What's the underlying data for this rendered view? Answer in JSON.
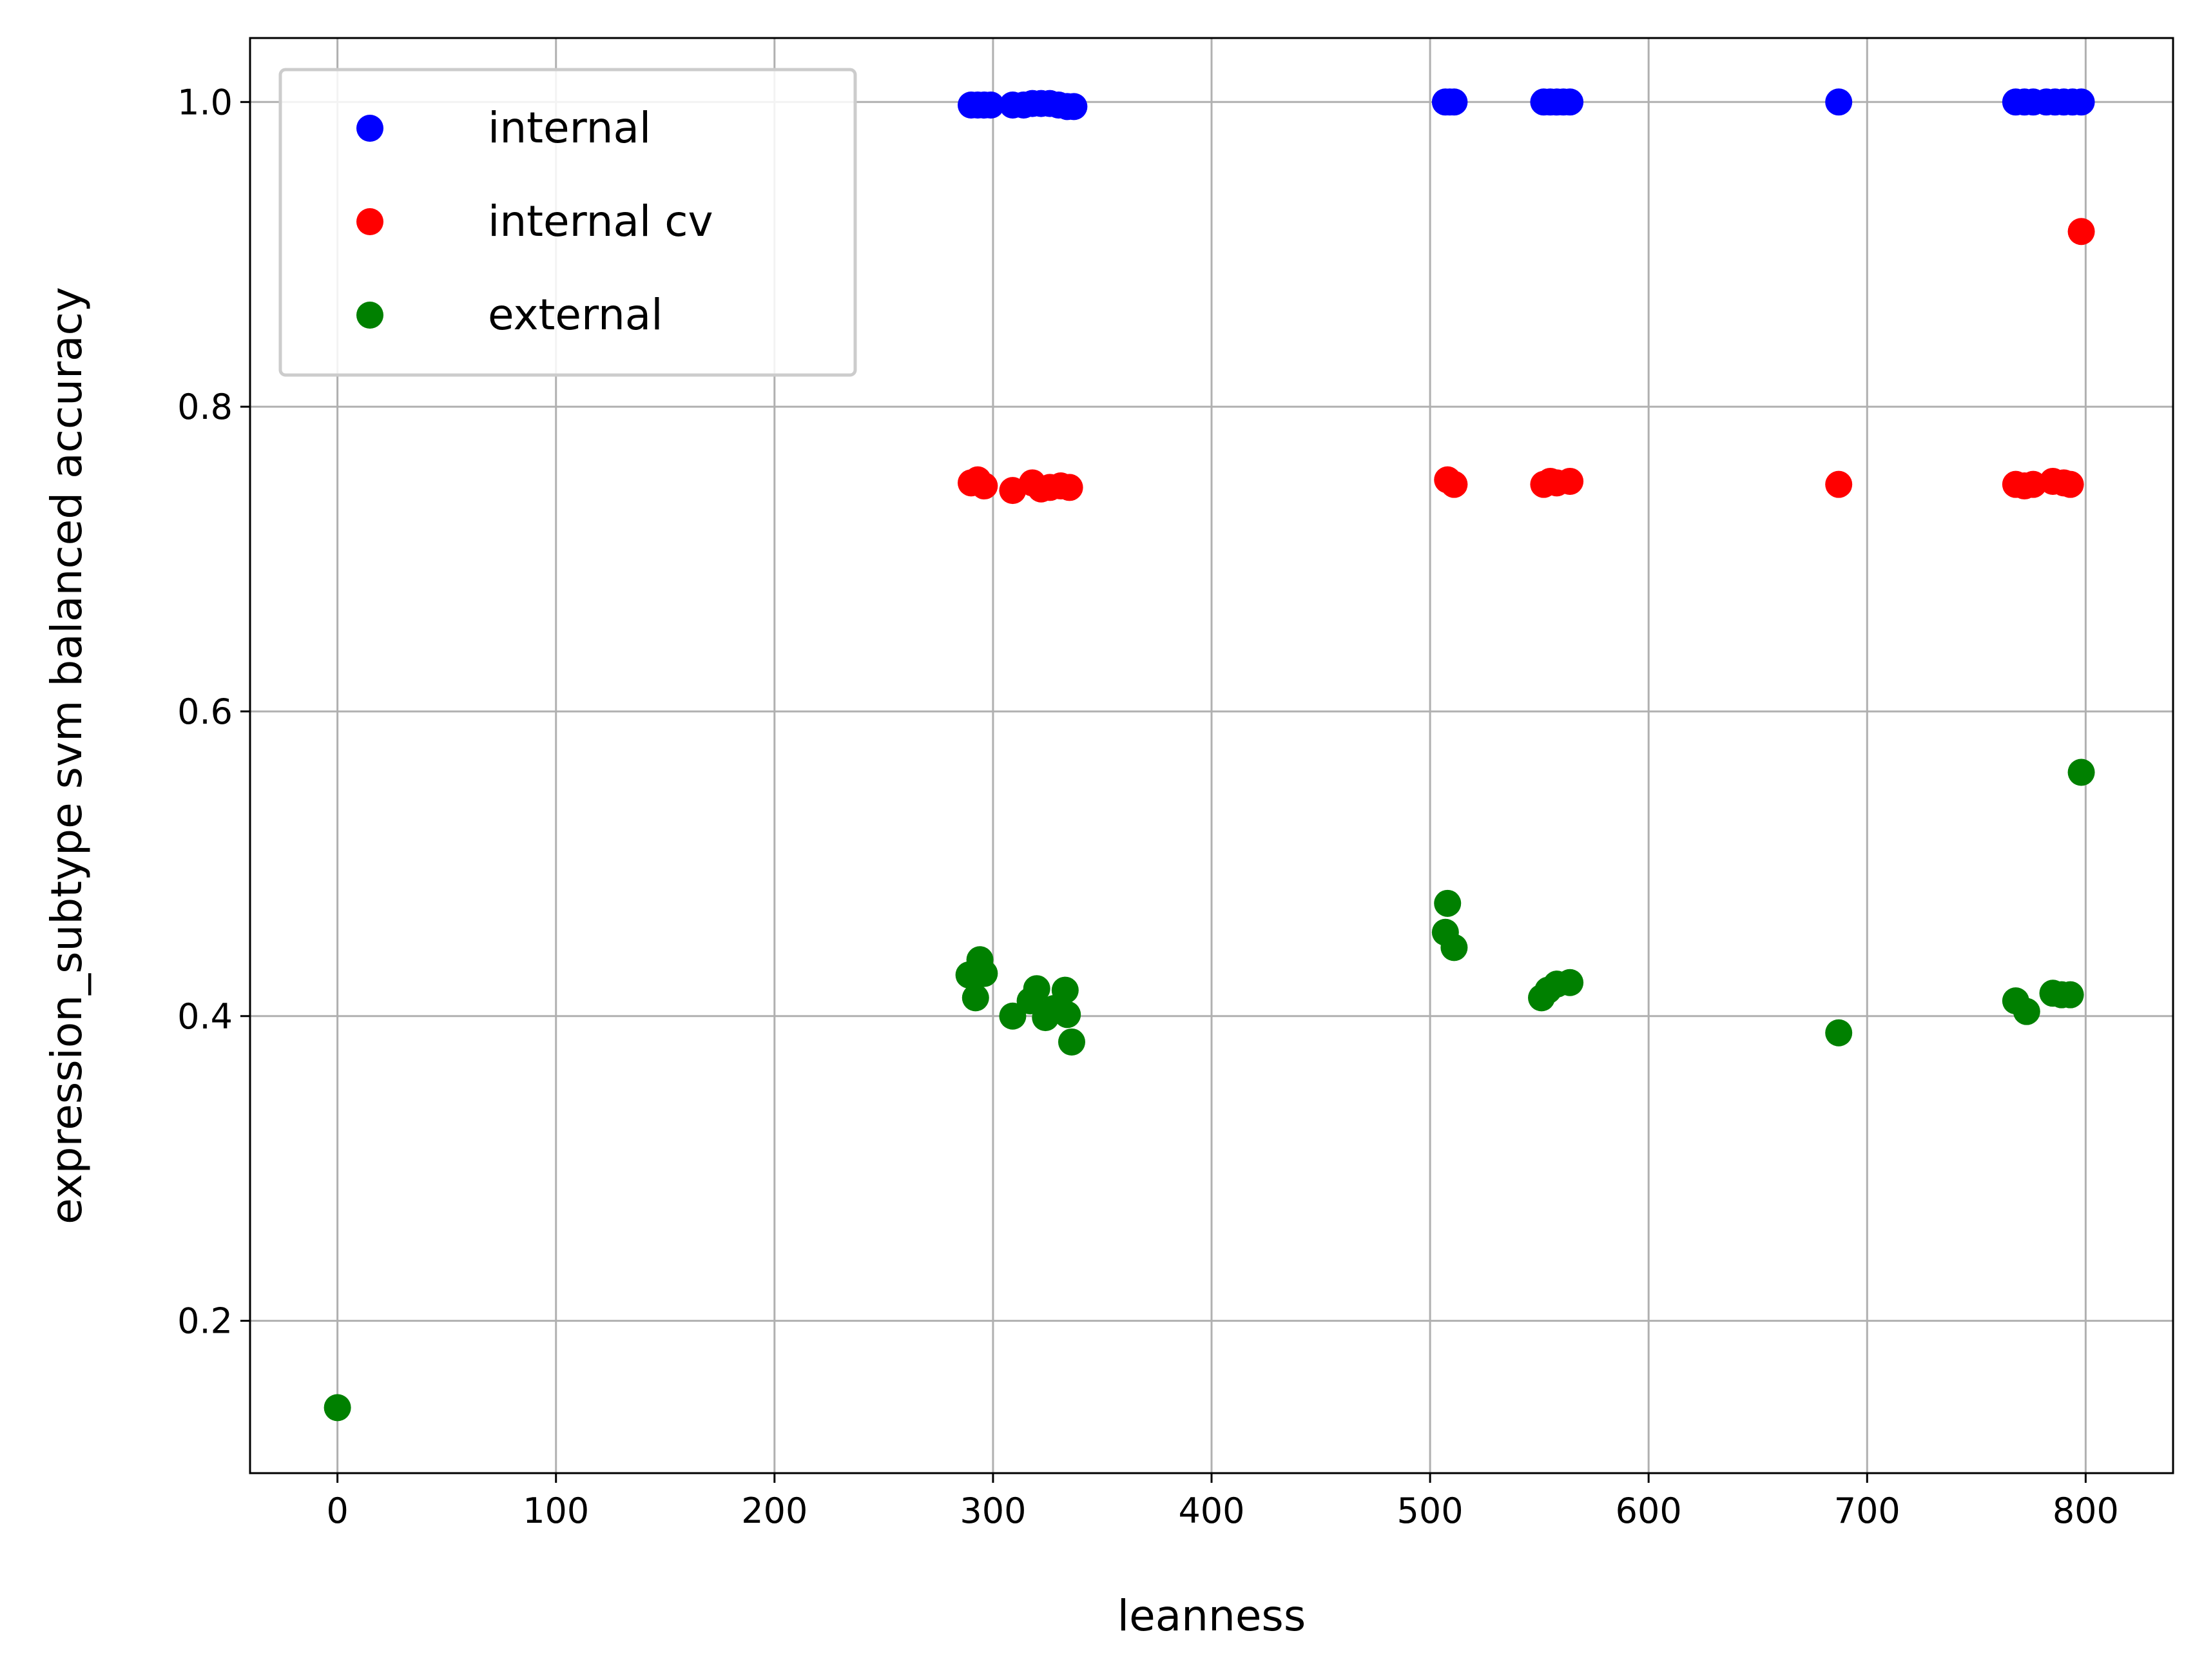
{
  "chart_data": {
    "type": "scatter",
    "xlabel": "leanness",
    "ylabel": "expression_subtype svm balanced accuracy",
    "xlim": [
      -40,
      840
    ],
    "ylim": [
      0.1,
      1.042
    ],
    "xticks": [
      0,
      100,
      200,
      300,
      400,
      500,
      600,
      700,
      800
    ],
    "yticks": [
      0.2,
      0.4,
      0.6,
      0.8,
      1.0
    ],
    "xtick_labels": [
      "0",
      "100",
      "200",
      "300",
      "400",
      "500",
      "600",
      "700",
      "800"
    ],
    "ytick_labels": [
      "0.2",
      "0.4",
      "0.6",
      "0.8",
      "1.0"
    ],
    "grid": true,
    "legend_position": "top-left",
    "series": [
      {
        "name": "internal",
        "color": "#0000ff",
        "points": [
          [
            290,
            0.998
          ],
          [
            293,
            0.998
          ],
          [
            296,
            0.998
          ],
          [
            299,
            0.998
          ],
          [
            309,
            0.998
          ],
          [
            314,
            0.998
          ],
          [
            318,
            0.999
          ],
          [
            322,
            0.999
          ],
          [
            326,
            0.999
          ],
          [
            330,
            0.998
          ],
          [
            334,
            0.997
          ],
          [
            337,
            0.997
          ],
          [
            507,
            1.0
          ],
          [
            509,
            1.0
          ],
          [
            511,
            1.0
          ],
          [
            552,
            1.0
          ],
          [
            555,
            1.0
          ],
          [
            558,
            1.0
          ],
          [
            561,
            1.0
          ],
          [
            564,
            1.0
          ],
          [
            687,
            1.0
          ],
          [
            768,
            1.0
          ],
          [
            772,
            1.0
          ],
          [
            776,
            1.0
          ],
          [
            782,
            1.0
          ],
          [
            786,
            1.0
          ],
          [
            790,
            1.0
          ],
          [
            794,
            1.0
          ],
          [
            798,
            1.0
          ]
        ]
      },
      {
        "name": "internal cv",
        "color": "#ff0000",
        "points": [
          [
            290,
            0.75
          ],
          [
            293,
            0.752
          ],
          [
            296,
            0.748
          ],
          [
            309,
            0.745
          ],
          [
            318,
            0.75
          ],
          [
            322,
            0.746
          ],
          [
            326,
            0.747
          ],
          [
            331,
            0.748
          ],
          [
            335,
            0.747
          ],
          [
            508,
            0.752
          ],
          [
            511,
            0.749
          ],
          [
            552,
            0.749
          ],
          [
            555,
            0.751
          ],
          [
            558,
            0.75
          ],
          [
            564,
            0.751
          ],
          [
            687,
            0.749
          ],
          [
            768,
            0.749
          ],
          [
            772,
            0.748
          ],
          [
            776,
            0.749
          ],
          [
            785,
            0.751
          ],
          [
            790,
            0.75
          ],
          [
            793,
            0.749
          ],
          [
            798,
            0.915
          ]
        ]
      },
      {
        "name": "external",
        "color": "#008000",
        "points": [
          [
            0,
            0.143
          ],
          [
            289,
            0.427
          ],
          [
            292,
            0.412
          ],
          [
            294,
            0.437
          ],
          [
            296,
            0.428
          ],
          [
            309,
            0.4
          ],
          [
            317,
            0.41
          ],
          [
            320,
            0.418
          ],
          [
            324,
            0.399
          ],
          [
            328,
            0.405
          ],
          [
            333,
            0.417
          ],
          [
            334,
            0.401
          ],
          [
            336,
            0.383
          ],
          [
            507,
            0.455
          ],
          [
            508,
            0.474
          ],
          [
            511,
            0.445
          ],
          [
            551,
            0.412
          ],
          [
            554,
            0.417
          ],
          [
            558,
            0.421
          ],
          [
            564,
            0.422
          ],
          [
            687,
            0.389
          ],
          [
            768,
            0.41
          ],
          [
            773,
            0.403
          ],
          [
            785,
            0.415
          ],
          [
            789,
            0.414
          ],
          [
            793,
            0.414
          ]
        ]
      },
      {
        "name": "",
        "color": "#008000",
        "points": [
          [
            798,
            0.56
          ]
        ]
      }
    ]
  }
}
